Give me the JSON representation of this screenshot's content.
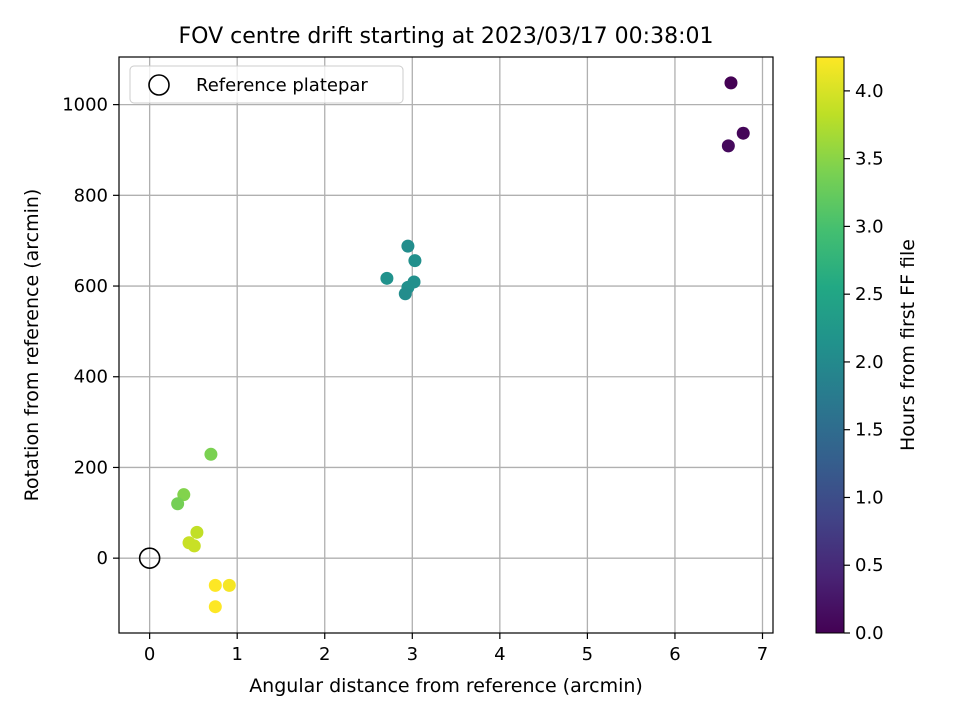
{
  "chart_data": {
    "type": "scatter",
    "title": "FOV centre drift starting at 2023/03/17 00:38:01",
    "xlabel": "Angular distance from reference (arcmin)",
    "ylabel": "Rotation from reference (arcmin)",
    "xlim": [
      -0.35,
      7.12
    ],
    "ylim": [
      -165,
      1105
    ],
    "xticks": [
      0,
      1,
      2,
      3,
      4,
      5,
      6,
      7
    ],
    "yticks": [
      0,
      200,
      400,
      600,
      800,
      1000
    ],
    "grid": true,
    "legend": {
      "position": "top-left",
      "entries": [
        "Reference platepar"
      ]
    },
    "reference_point": {
      "x": 0,
      "y": 0,
      "label": "Reference platepar"
    },
    "colorbar": {
      "label": "Hours from first FF file",
      "range": [
        0.0,
        4.25
      ],
      "ticks": [
        "0.0",
        "0.5",
        "1.0",
        "1.5",
        "2.0",
        "2.5",
        "3.0",
        "3.5",
        "4.0"
      ],
      "colormap": "viridis"
    },
    "points": [
      {
        "x": 6.64,
        "y": 1048,
        "hours": 0.0
      },
      {
        "x": 6.78,
        "y": 937,
        "hours": 0.05
      },
      {
        "x": 6.61,
        "y": 909,
        "hours": 0.1
      },
      {
        "x": 2.95,
        "y": 688,
        "hours": 2.05
      },
      {
        "x": 3.03,
        "y": 656,
        "hours": 2.1
      },
      {
        "x": 2.71,
        "y": 617,
        "hours": 2.15
      },
      {
        "x": 3.02,
        "y": 609,
        "hours": 2.1
      },
      {
        "x": 2.95,
        "y": 597,
        "hours": 2.1
      },
      {
        "x": 2.92,
        "y": 583,
        "hours": 2.05
      },
      {
        "x": 0.7,
        "y": 229,
        "hours": 3.4
      },
      {
        "x": 0.39,
        "y": 140,
        "hours": 3.45
      },
      {
        "x": 0.32,
        "y": 120,
        "hours": 3.35
      },
      {
        "x": 0.54,
        "y": 57,
        "hours": 3.85
      },
      {
        "x": 0.45,
        "y": 34,
        "hours": 3.9
      },
      {
        "x": 0.51,
        "y": 27,
        "hours": 3.9
      },
      {
        "x": 0.75,
        "y": -60,
        "hours": 4.25
      },
      {
        "x": 0.91,
        "y": -60,
        "hours": 4.2
      },
      {
        "x": 0.75,
        "y": -107,
        "hours": 4.25
      }
    ]
  }
}
